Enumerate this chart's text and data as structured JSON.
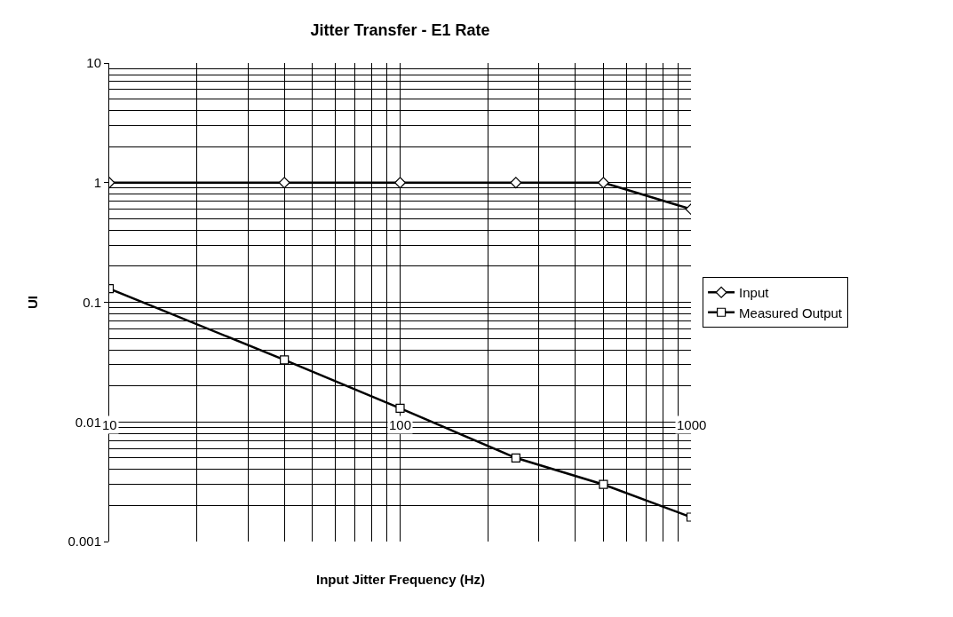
{
  "chart_data": {
    "type": "line",
    "title": "Jitter Transfer - E1 Rate",
    "xlabel": "Input Jitter Frequency (Hz)",
    "ylabel": "UI",
    "x": [
      10,
      40,
      100,
      250,
      500,
      1000
    ],
    "series": [
      {
        "name": "Input",
        "color": "#000000",
        "marker": "diamond",
        "values": [
          1,
          1,
          1,
          1,
          1,
          0.6
        ]
      },
      {
        "name": "Measured Output",
        "color": "#000000",
        "marker": "square",
        "values": [
          0.13,
          0.033,
          0.013,
          0.005,
          0.003,
          0.0016
        ]
      }
    ],
    "log": "xy",
    "xlim": [
      10,
      1000
    ],
    "ylim": [
      0.001,
      10
    ],
    "xticks": [
      10,
      100,
      1000
    ],
    "yticks": [
      0.001,
      0.01,
      0.1,
      1,
      10
    ],
    "grid": true,
    "legend": "right",
    "line_style": "solid"
  }
}
